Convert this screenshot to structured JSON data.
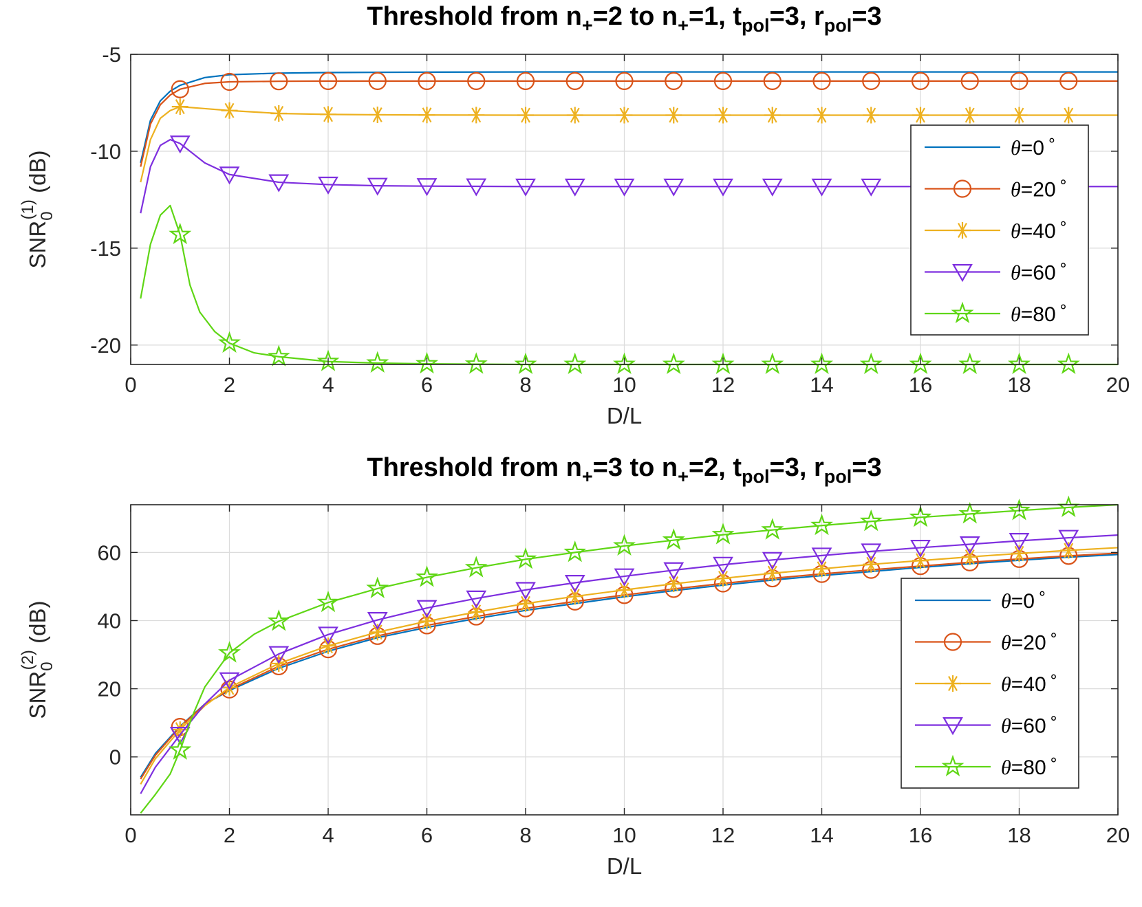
{
  "chart_data": [
    {
      "type": "line",
      "title": {
        "prefix": "Threshold from n",
        "sub1": "+",
        "mid1": "=2 to n",
        "sub2": "+",
        "mid2": "=1, t",
        "sub3": "pol",
        "mid3": "=3, r",
        "sub4": "pol",
        "suffix": "=3"
      },
      "xlabel": "D/L",
      "ylabel": {
        "base": "SNR",
        "sub": "0",
        "sup": "(1)",
        "unit": " (dB)"
      },
      "xlim": [
        0,
        20
      ],
      "ylim": [
        -21,
        -5
      ],
      "xticks": [
        "0",
        "2",
        "4",
        "6",
        "8",
        "10",
        "12",
        "14",
        "16",
        "18",
        "20"
      ],
      "yticks": [
        "-5",
        "-10",
        "-15",
        "-20"
      ],
      "ytick_values": [
        -5,
        -10,
        -15,
        -20
      ],
      "grid": true,
      "legend_position": "right",
      "series": [
        {
          "name": "θ=0°",
          "label": "=0",
          "color": "#0072BD",
          "marker": "none",
          "x": [
            0.2,
            0.4,
            0.6,
            0.8,
            1,
            1.5,
            2,
            3,
            4,
            5,
            6,
            8,
            10,
            12,
            14,
            16,
            18,
            20
          ],
          "y": [
            -10.6,
            -8.4,
            -7.4,
            -6.9,
            -6.6,
            -6.2,
            -6.05,
            -5.97,
            -5.94,
            -5.93,
            -5.92,
            -5.91,
            -5.91,
            -5.91,
            -5.91,
            -5.91,
            -5.91,
            -5.91
          ]
        },
        {
          "name": "θ=20°",
          "label": "=20",
          "color": "#D95319",
          "marker": "circle",
          "x": [
            0.2,
            0.4,
            0.6,
            0.8,
            1,
            1.5,
            2,
            3,
            4,
            5,
            6,
            8,
            10,
            12,
            14,
            16,
            18,
            20
          ],
          "y": [
            -10.8,
            -8.6,
            -7.6,
            -7.1,
            -6.8,
            -6.5,
            -6.42,
            -6.39,
            -6.38,
            -6.38,
            -6.38,
            -6.38,
            -6.38,
            -6.38,
            -6.38,
            -6.38,
            -6.38,
            -6.38
          ]
        },
        {
          "name": "θ=40°",
          "label": "=40",
          "color": "#EDB120",
          "marker": "asterisk",
          "x": [
            0.2,
            0.4,
            0.6,
            0.8,
            1,
            1.5,
            2,
            3,
            4,
            5,
            6,
            8,
            10,
            12,
            14,
            16,
            18,
            20
          ],
          "y": [
            -11.6,
            -9.4,
            -8.3,
            -7.9,
            -7.7,
            -7.8,
            -7.9,
            -8.05,
            -8.1,
            -8.12,
            -8.13,
            -8.14,
            -8.14,
            -8.14,
            -8.14,
            -8.14,
            -8.14,
            -8.14
          ]
        },
        {
          "name": "θ=60°",
          "label": "=60",
          "color": "#7E2FDF",
          "marker": "triangle-down",
          "x": [
            0.2,
            0.4,
            0.6,
            0.8,
            1,
            1.5,
            2,
            3,
            4,
            5,
            6,
            8,
            10,
            12,
            14,
            16,
            18,
            20
          ],
          "y": [
            -13.2,
            -10.8,
            -9.7,
            -9.4,
            -9.6,
            -10.6,
            -11.2,
            -11.6,
            -11.72,
            -11.78,
            -11.8,
            -11.82,
            -11.82,
            -11.82,
            -11.82,
            -11.82,
            -11.82,
            -11.82
          ]
        },
        {
          "name": "θ=80°",
          "label": "=80",
          "color": "#5FD615",
          "marker": "pentagram",
          "x": [
            0.2,
            0.4,
            0.6,
            0.8,
            1,
            1.2,
            1.4,
            1.7,
            2,
            2.5,
            3,
            4,
            5,
            6,
            8,
            10,
            12,
            14,
            16,
            18,
            20
          ],
          "y": [
            -17.6,
            -14.8,
            -13.3,
            -12.8,
            -14.3,
            -16.9,
            -18.3,
            -19.3,
            -19.9,
            -20.4,
            -20.6,
            -20.85,
            -20.93,
            -20.97,
            -21,
            -21,
            -21,
            -21,
            -21,
            -21,
            -21
          ]
        }
      ]
    },
    {
      "type": "line",
      "title": {
        "prefix": "Threshold from n",
        "sub1": "+",
        "mid1": "=3 to n",
        "sub2": "+",
        "mid2": "=2, t",
        "sub3": "pol",
        "mid3": "=3, r",
        "sub4": "pol",
        "suffix": "=3"
      },
      "xlabel": "D/L",
      "ylabel": {
        "base": "SNR",
        "sub": "0",
        "sup": "(2)",
        "unit": " (dB)"
      },
      "xlim": [
        0,
        20
      ],
      "ylim": [
        -17,
        74
      ],
      "xticks": [
        "0",
        "2",
        "4",
        "6",
        "8",
        "10",
        "12",
        "14",
        "16",
        "18",
        "20"
      ],
      "yticks": [
        "60",
        "40",
        "20",
        "0"
      ],
      "ytick_values": [
        60,
        40,
        20,
        0
      ],
      "grid": true,
      "legend_position": "right",
      "series": [
        {
          "name": "θ=0°",
          "label": "=0",
          "color": "#0072BD",
          "marker": "none",
          "x": [
            0.2,
            0.5,
            1,
            1.5,
            2,
            3,
            4,
            5,
            6,
            7,
            8,
            9,
            10,
            11,
            12,
            13,
            14,
            15,
            16,
            17,
            18,
            19,
            20
          ],
          "y": [
            -6,
            1,
            9,
            15.5,
            19.5,
            26,
            31,
            35,
            38,
            40.6,
            43,
            45,
            47,
            48.8,
            50.4,
            51.9,
            53.2,
            54.4,
            55.6,
            56.7,
            57.7,
            58.6,
            59.4
          ]
        },
        {
          "name": "θ=20°",
          "label": "=20",
          "color": "#D95319",
          "marker": "circle",
          "x": [
            0.2,
            0.5,
            1,
            1.5,
            2,
            3,
            4,
            5,
            6,
            7,
            8,
            9,
            10,
            11,
            12,
            13,
            14,
            15,
            16,
            17,
            18,
            19,
            20
          ],
          "y": [
            -6.5,
            0.5,
            8.8,
            15.4,
            19.8,
            26.6,
            31.6,
            35.5,
            38.6,
            41.2,
            43.6,
            45.6,
            47.5,
            49.3,
            50.9,
            52.4,
            53.7,
            54.9,
            56,
            57.1,
            58.1,
            59,
            59.8
          ]
        },
        {
          "name": "θ=40°",
          "label": "=40",
          "color": "#EDB120",
          "marker": "asterisk",
          "x": [
            0.2,
            0.5,
            1,
            1.5,
            2,
            3,
            4,
            5,
            6,
            7,
            8,
            9,
            10,
            11,
            12,
            13,
            14,
            15,
            16,
            17,
            18,
            19,
            20
          ],
          "y": [
            -8,
            -0.5,
            8,
            15,
            20.4,
            27.4,
            32.6,
            36.6,
            39.8,
            42.5,
            45,
            47.1,
            49,
            50.8,
            52.4,
            53.9,
            55.2,
            56.5,
            57.6,
            58.7,
            59.7,
            60.6,
            61.4
          ]
        },
        {
          "name": "θ=60°",
          "label": "=60",
          "color": "#7E2FDF",
          "marker": "triangle-down",
          "x": [
            0.2,
            0.5,
            1,
            1.5,
            2,
            3,
            4,
            5,
            6,
            7,
            8,
            9,
            10,
            11,
            12,
            13,
            14,
            15,
            16,
            17,
            18,
            19,
            20
          ],
          "y": [
            -10.8,
            -3,
            6.5,
            15.5,
            22.5,
            30.2,
            35.9,
            40.2,
            43.7,
            46.5,
            49,
            51.1,
            53,
            54.8,
            56.4,
            57.8,
            59.1,
            60.3,
            61.4,
            62.4,
            63.4,
            64.3,
            65.1
          ]
        },
        {
          "name": "θ=80°",
          "label": "=80",
          "color": "#5FD615",
          "marker": "pentagram",
          "x": [
            0.2,
            0.5,
            0.8,
            1,
            1.25,
            1.5,
            2,
            2.5,
            3,
            4,
            5,
            6,
            7,
            8,
            9,
            10,
            11,
            12,
            13,
            14,
            15,
            16,
            17,
            18,
            19,
            20
          ],
          "y": [
            -16.5,
            -11,
            -5,
            2,
            12,
            20.5,
            30.5,
            36,
            39.8,
            45.3,
            49.4,
            52.7,
            55.5,
            58,
            60,
            61.9,
            63.6,
            65.2,
            66.6,
            67.9,
            69.1,
            70.3,
            71.3,
            72.3,
            73.2,
            74
          ]
        }
      ]
    }
  ]
}
